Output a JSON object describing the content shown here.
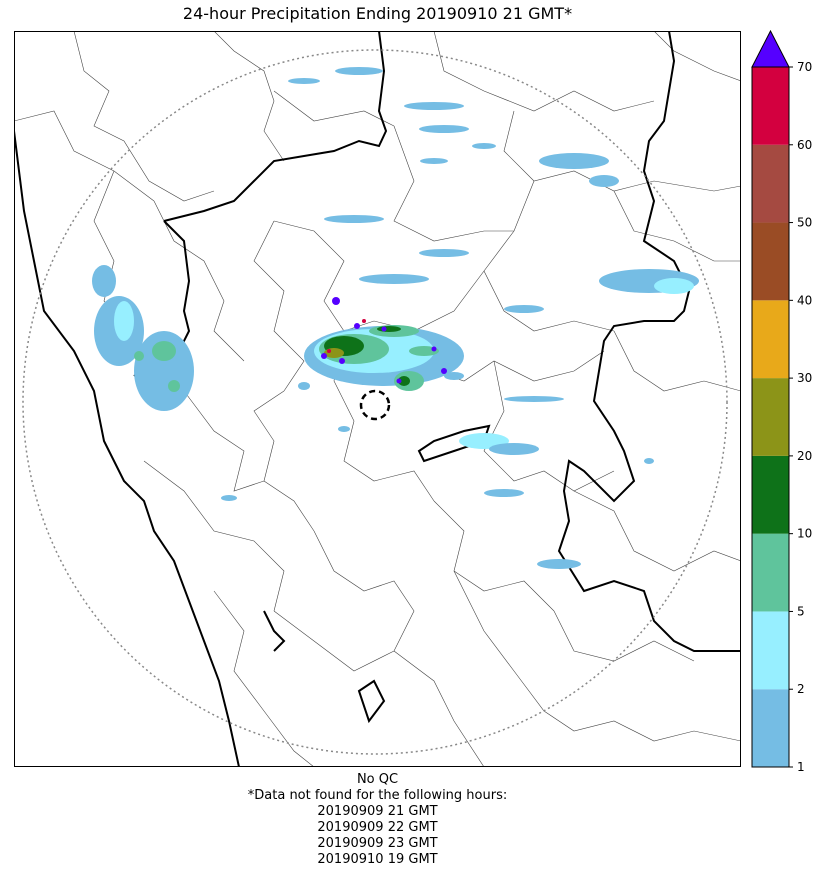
{
  "title": "24-hour Precipitation Ending 20190910 21 GMT*",
  "colorbar": {
    "levels": [
      "1",
      "2",
      "5",
      "10",
      "20",
      "30",
      "40",
      "50",
      "60",
      "70"
    ],
    "colors": [
      "#75bde4",
      "#97efff",
      "#5fc49c",
      "#0e7219",
      "#8c9418",
      "#e8a91a",
      "#9a4c25",
      "#a54a41",
      "#d3003f"
    ],
    "extend_color": "#5500ff"
  },
  "notes": {
    "qc": "No QC",
    "missing_header": "*Data not found for the following hours:",
    "missing_hours": [
      "20190909 21 GMT",
      "20190909 22 GMT",
      "20190909 23 GMT",
      "20190910 19 GMT"
    ]
  },
  "map": {
    "range_ring": "dotted",
    "radar_site_marker": "dashed-circle"
  }
}
